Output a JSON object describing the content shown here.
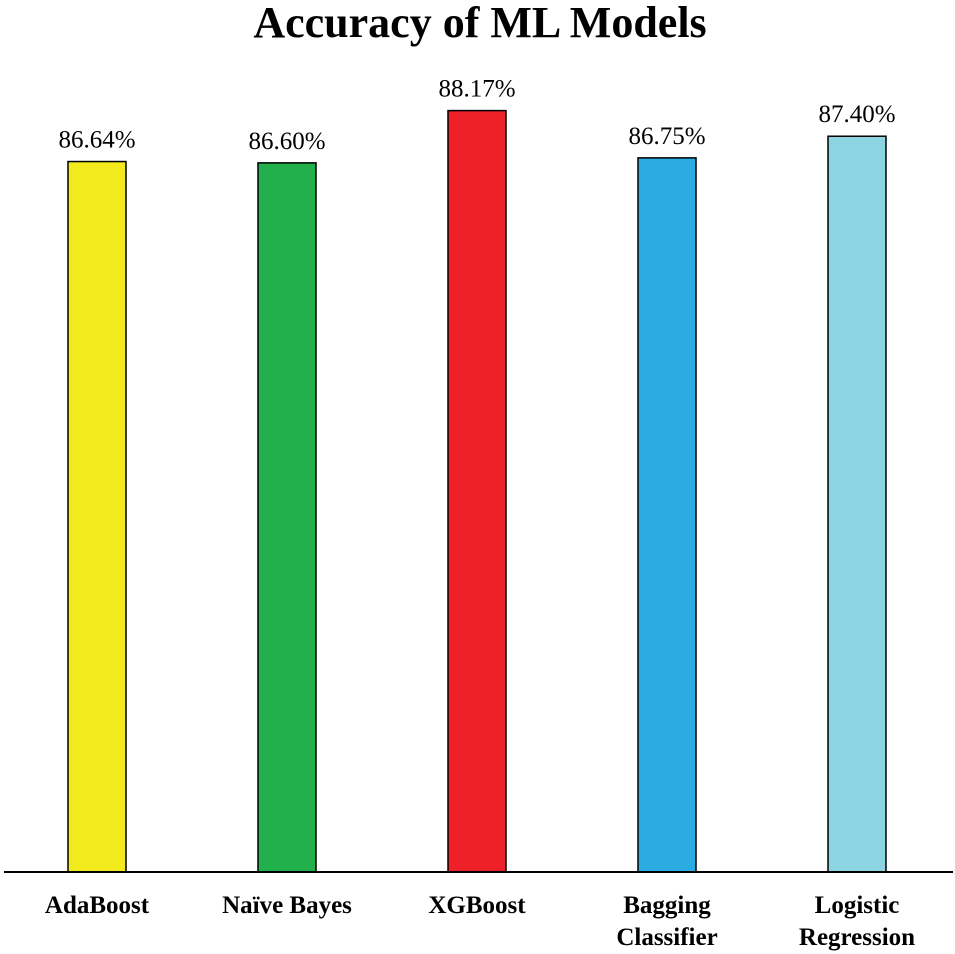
{
  "chart_data": {
    "type": "bar",
    "title": "Accuracy of ML Models",
    "categories": [
      [
        "AdaBoost"
      ],
      [
        "Naïve Bayes"
      ],
      [
        "XGBoost"
      ],
      [
        "Bagging",
        "Classifier"
      ],
      [
        "Logistic",
        "Regression"
      ]
    ],
    "values": [
      86.64,
      86.6,
      88.17,
      86.75,
      87.4
    ],
    "value_labels": [
      "86.64%",
      "86.60%",
      "88.17%",
      "86.75%",
      "87.40%"
    ],
    "colors": [
      "#f2ea1c",
      "#21b04c",
      "#ed2127",
      "#2aace2",
      "#8dd4e3"
    ],
    "xlabel": "",
    "ylabel": "",
    "ylim": [
      65.3,
      89.5
    ],
    "grid": false,
    "legend": "none"
  }
}
